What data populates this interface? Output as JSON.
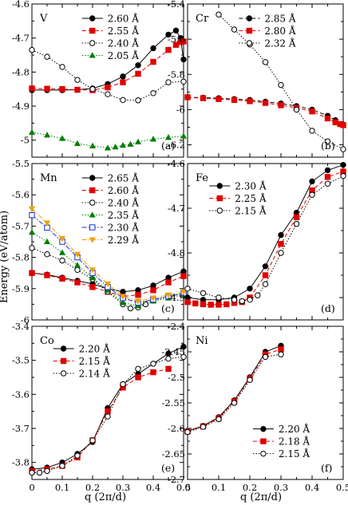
{
  "figure": {
    "ylabel": "Energy (eV/atom)",
    "xlabel": "q (2π/d)"
  },
  "chart_data": [
    {
      "type": "line",
      "element": "V",
      "panel_label": "(a)",
      "xlim": [
        0,
        0.5
      ],
      "ylim": [
        -5.05,
        -4.6
      ],
      "yticks": [
        "-4.6",
        "-4.7",
        "-4.8",
        "-4.9",
        "-5"
      ],
      "ytick_values": [
        -4.6,
        -4.7,
        -4.8,
        -4.9,
        -5.0
      ],
      "legend_position": "top-right",
      "series": [
        {
          "name": "2.60 Å",
          "color": "#000000",
          "marker": "circle-filled",
          "dash": "solid",
          "x": [
            0,
            0.05,
            0.1,
            0.15,
            0.2,
            0.25,
            0.3,
            0.35,
            0.4,
            0.45,
            0.475,
            0.49,
            0.5
          ],
          "y": [
            -4.853,
            -4.853,
            -4.853,
            -4.852,
            -4.848,
            -4.835,
            -4.813,
            -4.78,
            -4.73,
            -4.69,
            -4.678,
            -4.7,
            -4.763
          ]
        },
        {
          "name": "2.55 Å",
          "color": "#e00000",
          "marker": "square-filled",
          "dash": "dashed",
          "x": [
            0,
            0.05,
            0.1,
            0.15,
            0.2,
            0.25,
            0.3,
            0.35,
            0.4,
            0.45,
            0.475,
            0.49,
            0.5
          ],
          "y": [
            -4.848,
            -4.849,
            -4.85,
            -4.852,
            -4.853,
            -4.845,
            -4.83,
            -4.805,
            -4.77,
            -4.735,
            -4.72,
            -4.712,
            -4.71
          ]
        },
        {
          "name": "2.40 Å",
          "color": "#000000",
          "marker": "circle-open",
          "dash": "dotted",
          "x": [
            0,
            0.05,
            0.1,
            0.15,
            0.2,
            0.25,
            0.3,
            0.35,
            0.4,
            0.45,
            0.5
          ],
          "y": [
            -4.735,
            -4.755,
            -4.785,
            -4.823,
            -4.85,
            -4.865,
            -4.882,
            -4.883,
            -4.862,
            -4.83,
            -4.828
          ]
        },
        {
          "name": "2.05 Å",
          "color": "#008000",
          "marker": "triangle-filled",
          "dash": "dotted",
          "x": [
            0,
            0.05,
            0.1,
            0.15,
            0.2,
            0.25,
            0.275,
            0.3,
            0.325,
            0.35,
            0.4,
            0.45,
            0.5
          ],
          "y": [
            -4.977,
            -4.985,
            -4.995,
            -5.01,
            -5.017,
            -5.023,
            -5.02,
            -5.015,
            -5.012,
            -5.005,
            -4.997,
            -4.992,
            -4.988
          ]
        }
      ]
    },
    {
      "type": "line",
      "element": "Cr",
      "panel_label": "(b)",
      "xlim": [
        0,
        0.5
      ],
      "ylim": [
        -6.27,
        -5.4
      ],
      "yticks": [
        "-5.4",
        "-5.6",
        "-5.8",
        "-6",
        "-6.2"
      ],
      "ytick_values": [
        -5.4,
        -5.6,
        -5.8,
        -6.0,
        -6.2
      ],
      "legend_position": "top-right",
      "series": [
        {
          "name": "2.85 Å",
          "color": "#000000",
          "marker": "circle-filled",
          "dash": "dashed",
          "x": [
            0,
            0.05,
            0.1,
            0.15,
            0.2,
            0.25,
            0.3,
            0.35,
            0.4,
            0.45,
            0.475,
            0.5
          ],
          "y": [
            -5.93,
            -5.932,
            -5.935,
            -5.94,
            -5.945,
            -5.955,
            -5.965,
            -5.98,
            -6.0,
            -6.035,
            -6.06,
            -6.085
          ]
        },
        {
          "name": "2.80 Å",
          "color": "#e00000",
          "marker": "square-filled",
          "dash": "dashed",
          "x": [
            0,
            0.05,
            0.1,
            0.15,
            0.2,
            0.25,
            0.3,
            0.35,
            0.4,
            0.45,
            0.475,
            0.49,
            0.5
          ],
          "y": [
            -5.93,
            -5.935,
            -5.94,
            -5.945,
            -5.952,
            -5.962,
            -5.975,
            -5.99,
            -6.01,
            -6.05,
            -6.072,
            -6.082,
            -6.088
          ]
        },
        {
          "name": "2.32 Å",
          "color": "#000000",
          "marker": "circle-open",
          "dash": "dotted",
          "x": [
            0.1,
            0.15,
            0.2,
            0.25,
            0.3,
            0.35,
            0.4,
            0.45,
            0.5
          ],
          "y": [
            -5.46,
            -5.545,
            -5.63,
            -5.73,
            -5.86,
            -6.0,
            -6.12,
            -6.18,
            -6.225
          ]
        }
      ]
    },
    {
      "type": "line",
      "element": "Mn",
      "panel_label": "(c)",
      "xlim": [
        0,
        0.5
      ],
      "ylim": [
        -6.0,
        -5.5
      ],
      "yticks": [
        "-5.5",
        "-5.6",
        "-5.7",
        "-5.8",
        "-5.9",
        "-6"
      ],
      "ytick_values": [
        -5.5,
        -5.6,
        -5.7,
        -5.8,
        -5.9,
        -6.0
      ],
      "legend_position": "top-right",
      "series": [
        {
          "name": "2.65 Å",
          "color": "#000000",
          "marker": "circle-filled",
          "dash": "solid",
          "x": [
            0,
            0.05,
            0.1,
            0.15,
            0.2,
            0.25,
            0.3,
            0.35,
            0.4,
            0.45,
            0.5
          ],
          "y": [
            -5.85,
            -5.855,
            -5.865,
            -5.875,
            -5.885,
            -5.9,
            -5.91,
            -5.905,
            -5.89,
            -5.865,
            -5.845
          ]
        },
        {
          "name": "2.60 Å",
          "color": "#e00000",
          "marker": "square-filled",
          "dash": "dashed",
          "x": [
            0,
            0.05,
            0.1,
            0.15,
            0.2,
            0.25,
            0.3,
            0.35,
            0.4,
            0.45,
            0.5
          ],
          "y": [
            -5.85,
            -5.857,
            -5.868,
            -5.88,
            -5.895,
            -5.91,
            -5.925,
            -5.92,
            -5.905,
            -5.88,
            -5.86
          ]
        },
        {
          "name": "2.40 Å",
          "color": "#000000",
          "marker": "circle-open",
          "dash": "dotted",
          "x": [
            0,
            0.05,
            0.1,
            0.15,
            0.2,
            0.25,
            0.3,
            0.325,
            0.35,
            0.375,
            0.4,
            0.45,
            0.5
          ],
          "y": [
            -5.77,
            -5.79,
            -5.81,
            -5.84,
            -5.87,
            -5.91,
            -5.95,
            -5.963,
            -5.96,
            -5.95,
            -5.937,
            -5.925,
            -5.915
          ]
        },
        {
          "name": "2.35 Å",
          "color": "#008000",
          "marker": "triangle-filled",
          "dash": "dotted",
          "x": [
            0,
            0.05,
            0.1,
            0.15,
            0.2,
            0.25,
            0.3,
            0.35,
            0.4,
            0.45,
            0.5
          ],
          "y": [
            -5.72,
            -5.75,
            -5.785,
            -5.825,
            -5.865,
            -5.905,
            -5.945,
            -5.955,
            -5.94,
            -5.93,
            -5.92
          ]
        },
        {
          "name": "2.30 Å",
          "color": "#1030d0",
          "marker": "square-open",
          "dash": "dashdot",
          "x": [
            0,
            0.05,
            0.1,
            0.15,
            0.2,
            0.25,
            0.3,
            0.35,
            0.4,
            0.45,
            0.5
          ],
          "y": [
            -5.665,
            -5.705,
            -5.75,
            -5.8,
            -5.85,
            -5.895,
            -5.93,
            -5.945,
            -5.935,
            -5.925,
            -5.915
          ]
        },
        {
          "name": "2.29 Å",
          "color": "#f0a000",
          "marker": "triangle-down-filled",
          "dash": "dashdot",
          "x": [
            0,
            0.05,
            0.1,
            0.15,
            0.2,
            0.25,
            0.3,
            0.35,
            0.4,
            0.45,
            0.5
          ],
          "y": [
            -5.645,
            -5.69,
            -5.74,
            -5.79,
            -5.84,
            -5.885,
            -5.925,
            -5.94,
            -5.93,
            -5.92,
            -5.91
          ]
        }
      ]
    },
    {
      "type": "line",
      "element": "Fe",
      "panel_label": "(d)",
      "xlim": [
        0,
        0.5
      ],
      "ylim": [
        -4.95,
        -4.6
      ],
      "yticks": [
        "-4.6",
        "-4.7",
        "-4.8",
        "-4.9"
      ],
      "ytick_values": [
        -4.6,
        -4.7,
        -4.8,
        -4.9
      ],
      "legend_position": "top-left",
      "series": [
        {
          "name": "2.30 Å",
          "color": "#000000",
          "marker": "circle-filled",
          "dash": "solid",
          "x": [
            0,
            0.05,
            0.1,
            0.15,
            0.2,
            0.25,
            0.3,
            0.35,
            0.4,
            0.45,
            0.5
          ],
          "y": [
            -4.9,
            -4.905,
            -4.905,
            -4.9,
            -4.88,
            -4.83,
            -4.76,
            -4.71,
            -4.64,
            -4.615,
            -4.603
          ]
        },
        {
          "name": "2.25 Å",
          "color": "#e00000",
          "marker": "square-filled",
          "dash": "dashed",
          "x": [
            0,
            0.025,
            0.05,
            0.075,
            0.1,
            0.125,
            0.15,
            0.175,
            0.2,
            0.25,
            0.3,
            0.35,
            0.4,
            0.45,
            0.5
          ],
          "y": [
            -4.91,
            -4.913,
            -4.915,
            -4.916,
            -4.916,
            -4.915,
            -4.912,
            -4.91,
            -4.9,
            -4.85,
            -4.78,
            -4.72,
            -4.66,
            -4.63,
            -4.618
          ]
        },
        {
          "name": "2.15 Å",
          "color": "#000000",
          "marker": "circle-open",
          "dash": "dotted",
          "x": [
            0,
            0.05,
            0.1,
            0.15,
            0.175,
            0.2,
            0.225,
            0.25,
            0.3,
            0.35,
            0.4,
            0.45,
            0.5
          ],
          "y": [
            -4.88,
            -4.89,
            -4.9,
            -4.905,
            -4.908,
            -4.905,
            -4.895,
            -4.87,
            -4.8,
            -4.735,
            -4.67,
            -4.645,
            -4.628
          ]
        }
      ]
    },
    {
      "type": "line",
      "element": "Co",
      "panel_label": "(e)",
      "xlim": [
        0,
        0.5
      ],
      "ylim": [
        -3.85,
        -3.4
      ],
      "yticks": [
        "-3.4",
        "-3.5",
        "-3.6",
        "-3.7",
        "-3.8"
      ],
      "ytick_values": [
        -3.4,
        -3.5,
        -3.6,
        -3.7,
        -3.8
      ],
      "legend_position": "top-left",
      "series": [
        {
          "name": "2.20 Å",
          "color": "#000000",
          "marker": "circle-filled",
          "dash": "solid",
          "x": [
            0,
            0.05,
            0.1,
            0.15,
            0.2,
            0.25,
            0.3,
            0.35,
            0.4,
            0.45,
            0.5
          ],
          "y": [
            -3.82,
            -3.815,
            -3.8,
            -3.775,
            -3.74,
            -3.64,
            -3.57,
            -3.54,
            -3.51,
            -3.48,
            -3.46
          ]
        },
        {
          "name": "2.15 Å",
          "color": "#e00000",
          "marker": "square-filled",
          "dash": "dashed",
          "x": [
            0,
            0.05,
            0.1,
            0.15,
            0.2,
            0.25,
            0.3,
            0.35,
            0.4,
            0.45
          ],
          "y": [
            -3.825,
            -3.82,
            -3.81,
            -3.785,
            -3.735,
            -3.65,
            -3.58,
            -3.55,
            -3.535,
            -3.525
          ]
        },
        {
          "name": "2.14 Å",
          "color": "#000000",
          "marker": "circle-open",
          "dash": "dotted",
          "x": [
            0,
            0.025,
            0.05,
            0.1,
            0.15,
            0.2,
            0.25,
            0.3,
            0.35,
            0.4,
            0.45,
            0.5
          ],
          "y": [
            -3.83,
            -3.83,
            -3.825,
            -3.81,
            -3.78,
            -3.735,
            -3.665,
            -3.57,
            -3.525,
            -3.51,
            -3.495,
            -3.49
          ]
        }
      ]
    },
    {
      "type": "line",
      "element": "Ni",
      "panel_label": "(f)",
      "xlim": [
        0,
        0.5
      ],
      "ylim": [
        -2.7,
        -2.4
      ],
      "yticks": [
        "-2.4",
        "-2.45",
        "-2.5",
        "-2.55",
        "-2.6",
        "-2.65",
        "-2.7"
      ],
      "ytick_values": [
        -2.4,
        -2.45,
        -2.5,
        -2.55,
        -2.6,
        -2.65,
        -2.7
      ],
      "legend_position": "bottom-right",
      "series": [
        {
          "name": "2.20 Å",
          "color": "#000000",
          "marker": "circle-filled",
          "dash": "solid",
          "x": [
            0,
            0.05,
            0.1,
            0.15,
            0.2,
            0.25,
            0.3
          ],
          "y": [
            -2.605,
            -2.595,
            -2.578,
            -2.545,
            -2.5,
            -2.45,
            -2.438
          ]
        },
        {
          "name": "2.18 Å",
          "color": "#e00000",
          "marker": "square-filled",
          "dash": "dashed",
          "x": [
            0,
            0.05,
            0.1,
            0.15,
            0.2,
            0.25,
            0.3
          ],
          "y": [
            -2.606,
            -2.596,
            -2.58,
            -2.547,
            -2.502,
            -2.455,
            -2.445
          ]
        },
        {
          "name": "2.15 Å",
          "color": "#000000",
          "marker": "circle-open",
          "dash": "dotted",
          "x": [
            0,
            0.05,
            0.1,
            0.15,
            0.2,
            0.25,
            0.3
          ],
          "y": [
            -2.607,
            -2.597,
            -2.582,
            -2.55,
            -2.505,
            -2.46,
            -2.455
          ]
        }
      ]
    }
  ]
}
